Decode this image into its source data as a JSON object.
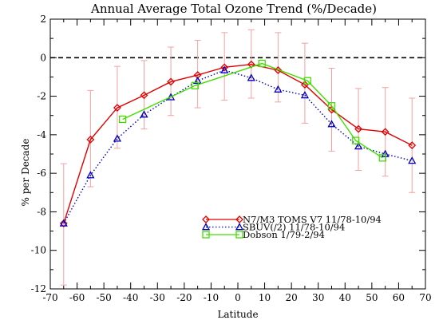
{
  "chart_data": {
    "type": "line",
    "title": "Annual Average Total Ozone Trend (%/Decade)",
    "xlabel": "Latitude",
    "ylabel": "% per Decade",
    "xlim": [
      -70,
      70
    ],
    "ylim": [
      -12,
      2
    ],
    "xticks": [
      "-70",
      "-60",
      "-50",
      "-40",
      "-30",
      "-20",
      "-10",
      "0",
      "10",
      "20",
      "30",
      "40",
      "50",
      "60",
      "70"
    ],
    "yticks": [
      "-12",
      "-10",
      "-8",
      "-6",
      "-4",
      "-2",
      "0",
      "2"
    ],
    "reference_line": {
      "y": 0,
      "style": "dashed"
    },
    "legend_position": "lower-right",
    "series": [
      {
        "name": "N7/M3 TOMS V7 11/78-10/94",
        "color": "#e00000",
        "marker": "diamond",
        "line": "solid",
        "x": [
          -65,
          -55,
          -45,
          -35,
          -25,
          -15,
          -5,
          5,
          15,
          25,
          35,
          45,
          55,
          65
        ],
        "y": [
          -8.6,
          -4.25,
          -2.6,
          -1.95,
          -1.25,
          -0.9,
          -0.5,
          -0.35,
          -0.65,
          -1.4,
          -2.7,
          -3.7,
          -3.85,
          -4.55
        ],
        "err_low": [
          -11.8,
          -6.7,
          -4.7,
          -3.7,
          -3.0,
          -2.6,
          -2.2,
          -2.1,
          -2.3,
          -3.4,
          -4.85,
          -5.85,
          -6.15,
          -7.0
        ],
        "err_high": [
          -5.5,
          -1.7,
          -0.45,
          -0.15,
          0.55,
          0.9,
          1.3,
          1.45,
          1.3,
          0.75,
          -0.55,
          -1.6,
          -1.55,
          -2.1
        ]
      },
      {
        "name": "SBUV(/2) 11/78-10/94",
        "color": "#0000c0",
        "marker": "triangle",
        "line": "dotted",
        "x": [
          -65,
          -55,
          -45,
          -35,
          -25,
          -15,
          -5,
          5,
          15,
          25,
          35,
          45,
          55,
          65
        ],
        "y": [
          -8.6,
          -6.1,
          -4.2,
          -2.95,
          -2.05,
          -1.2,
          -0.65,
          -1.05,
          -1.65,
          -1.95,
          -3.45,
          -4.6,
          -5.0,
          -5.35
        ]
      },
      {
        "name": "Dobson 1/79-2/94",
        "color": "#44dd00",
        "marker": "square",
        "line": "solid",
        "x": [
          -43,
          -16,
          9,
          26,
          35,
          44,
          54
        ],
        "y": [
          -3.2,
          -1.45,
          -0.3,
          -1.2,
          -2.5,
          -4.3,
          -5.2
        ]
      }
    ]
  }
}
